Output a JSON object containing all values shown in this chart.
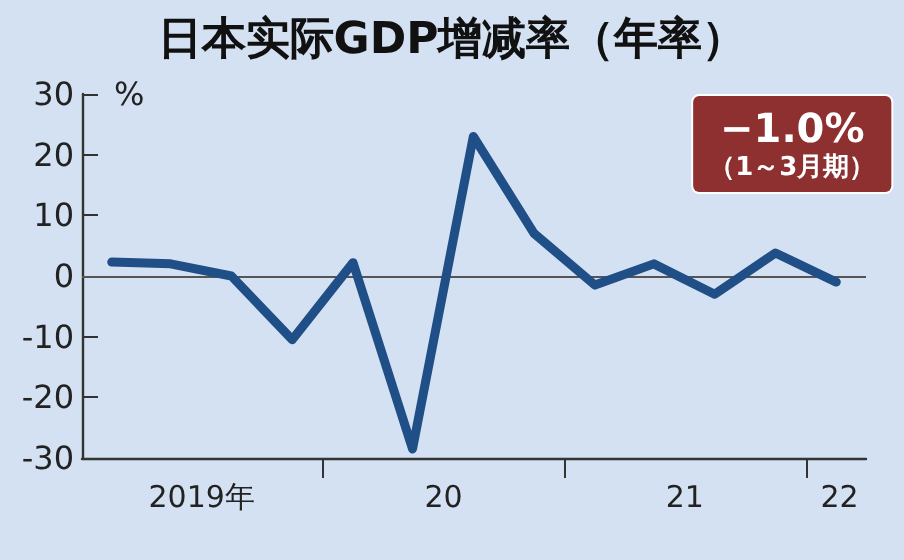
{
  "chart_data": {
    "type": "line",
    "title": "日本实际GDP增减率（年率）",
    "ylabel": "%",
    "x": [
      "2019-02-15",
      "2019-05-15",
      "2019-08-15",
      "2019-11-15",
      "2020-02-15",
      "2020-05-15",
      "2020-08-15",
      "2020-11-15",
      "2021-02-15",
      "2021-05-15",
      "2021-08-15",
      "2021-11-15",
      "2022-02-15"
    ],
    "series": [
      {
        "color": "#1f4f86",
        "values": [
          2.3,
          2.0,
          0,
          -10.5,
          2.2,
          -28.5,
          23,
          7,
          -1.5,
          2,
          -3,
          3.8,
          -1.0
        ]
      }
    ],
    "xlim": [
      "2019-01-01",
      "2022-04-01"
    ],
    "xticks": [
      {
        "value": "2019-07-01",
        "label": "2019年"
      },
      {
        "value": "2020-01-01",
        "label": null
      },
      {
        "value": "2020-07-01",
        "label": "20"
      },
      {
        "value": "2021-01-01",
        "label": null
      },
      {
        "value": "2021-07-01",
        "label": "21"
      },
      {
        "value": "2022-01-01",
        "label": null
      },
      {
        "value": "2022-02-20",
        "label": "22"
      }
    ],
    "ylim": [
      -30,
      30
    ],
    "yticks": [
      -30,
      -20,
      -10,
      0,
      10,
      20,
      30
    ],
    "ref_lines": [
      {
        "axis": "y",
        "value": 0,
        "color": "#555555"
      }
    ],
    "annotations": [
      {
        "text": "−1.0%\n（1～3月期）",
        "x": "2022-02-15",
        "y": -1.0
      }
    ],
    "grid": false,
    "marker": "none",
    "line_style": "solid"
  }
}
